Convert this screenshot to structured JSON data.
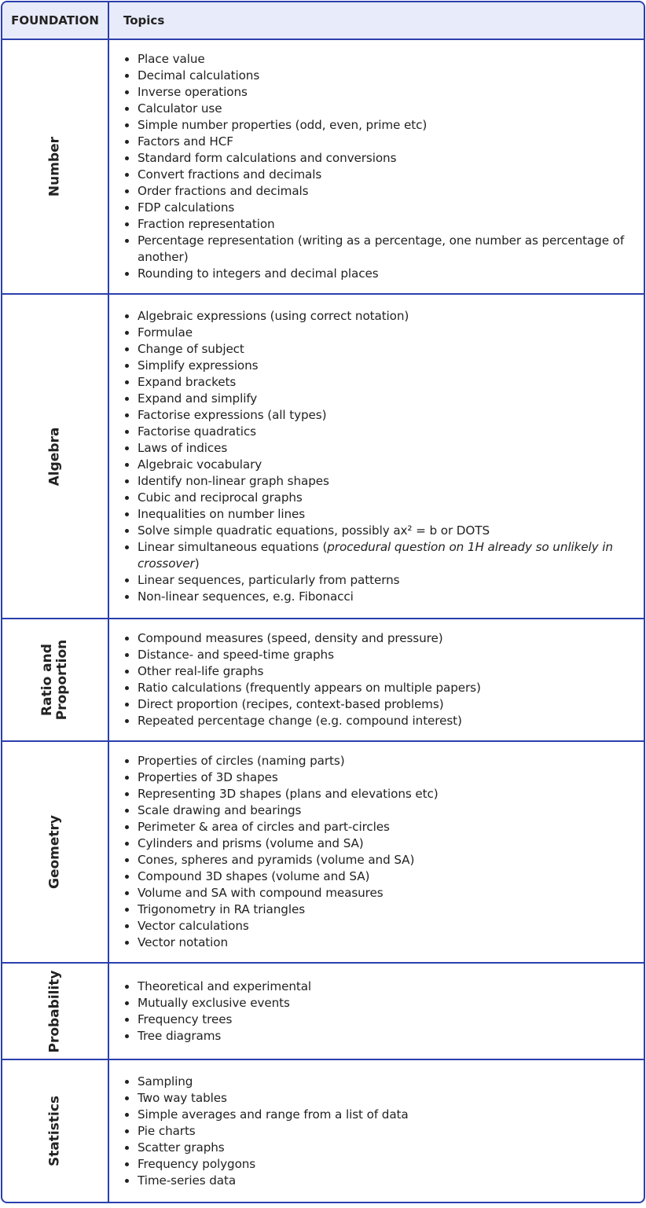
{
  "header": {
    "col1": "FOUNDATION",
    "col2": "Topics"
  },
  "colors": {
    "border": "#2b3fae",
    "header_bg": "#e8ebf9"
  },
  "rows": [
    {
      "category": "Number",
      "items": [
        [
          "Place value"
        ],
        [
          "Decimal calculations"
        ],
        [
          "Inverse operations"
        ],
        [
          "Calculator use"
        ],
        [
          "Simple number properties (odd, even, prime etc)"
        ],
        [
          "Factors and HCF"
        ],
        [
          "Standard form calculations and conversions"
        ],
        [
          "Convert fractions and decimals"
        ],
        [
          "Order fractions and decimals"
        ],
        [
          "FDP calculations"
        ],
        [
          "Fraction representation"
        ],
        [
          "Percentage representation (writing as a percentage, one number as percentage of another)"
        ],
        [
          "Rounding to integers and decimal places"
        ]
      ]
    },
    {
      "category": "Algebra",
      "items": [
        [
          "Algebraic expressions (using correct notation)"
        ],
        [
          "Formulae"
        ],
        [
          "Change of subject"
        ],
        [
          "Simplify expressions"
        ],
        [
          "Expand brackets"
        ],
        [
          "Expand and simplify"
        ],
        [
          "Factorise expressions (all types)"
        ],
        [
          "Factorise quadratics"
        ],
        [
          "Laws of indices"
        ],
        [
          "Algebraic vocabulary"
        ],
        [
          "Identify non-linear graph shapes"
        ],
        [
          "Cubic and reciprocal graphs"
        ],
        [
          "Inequalities on number lines"
        ],
        [
          "Solve simple quadratic equations, possibly ax² = b or DOTS"
        ],
        [
          "Linear simultaneous equations (",
          "procedural question on 1H already so unlikely in crossover",
          ")"
        ],
        [
          "Linear sequences, particularly from patterns"
        ],
        [
          "Non-linear sequences, e.g. Fibonacci"
        ]
      ]
    },
    {
      "category": "Ratio and Proportion",
      "items": [
        [
          "Compound measures (speed, density and pressure)"
        ],
        [
          "Distance- and speed-time graphs"
        ],
        [
          "Other real-life graphs"
        ],
        [
          "Ratio calculations (frequently appears on multiple papers)"
        ],
        [
          "Direct proportion (recipes, context-based problems)"
        ],
        [
          "Repeated percentage change (e.g. compound interest)"
        ]
      ]
    },
    {
      "category": "Geometry",
      "items": [
        [
          "Properties of circles (naming parts)"
        ],
        [
          "Properties of 3D shapes"
        ],
        [
          "Representing 3D shapes (plans and elevations etc)"
        ],
        [
          "Scale drawing and bearings"
        ],
        [
          "Perimeter & area of circles and part-circles"
        ],
        [
          "Cylinders and prisms (volume and SA)"
        ],
        [
          "Cones, spheres and pyramids (volume and SA)"
        ],
        [
          "Compound 3D shapes (volume and SA)"
        ],
        [
          "Volume and SA with compound measures"
        ],
        [
          "Trigonometry in RA triangles"
        ],
        [
          "Vector calculations"
        ],
        [
          "Vector notation"
        ]
      ]
    },
    {
      "category": "Probability",
      "items": [
        [
          "Theoretical and experimental"
        ],
        [
          "Mutually exclusive events"
        ],
        [
          "Frequency trees"
        ],
        [
          "Tree diagrams"
        ]
      ]
    },
    {
      "category": "Statistics",
      "items": [
        [
          "Sampling"
        ],
        [
          "Two way tables"
        ],
        [
          "Simple averages and range from a list of data"
        ],
        [
          "Pie charts"
        ],
        [
          "Scatter graphs"
        ],
        [
          "Frequency polygons"
        ],
        [
          "Time-series data"
        ]
      ]
    }
  ]
}
